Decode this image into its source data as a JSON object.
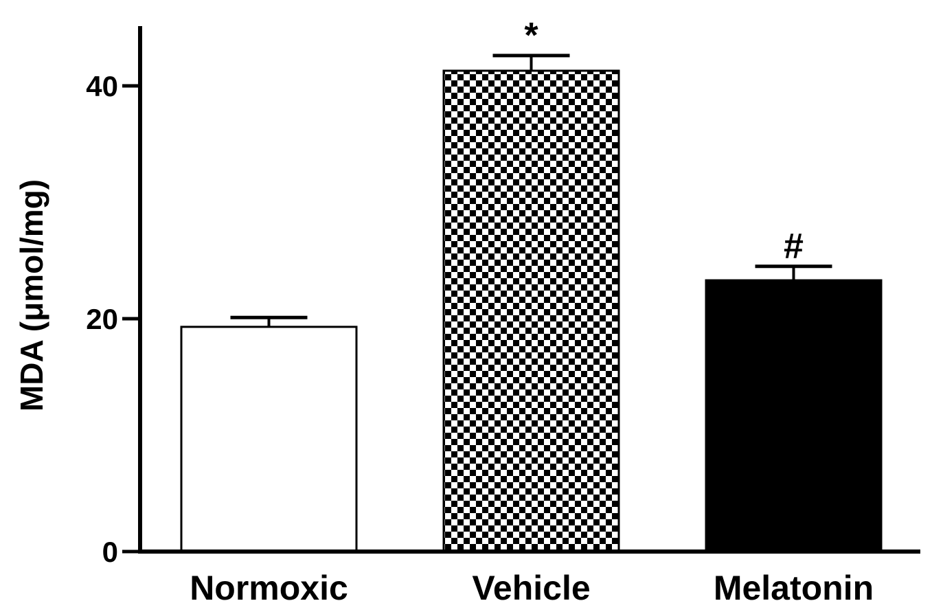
{
  "chart_data": {
    "type": "bar",
    "title": "",
    "xlabel": "",
    "ylabel": "MDA (μmol/mg)",
    "ylim": [
      0,
      45
    ],
    "yticks": [
      {
        "value": 0,
        "label": "0"
      },
      {
        "value": 20,
        "label": "20"
      },
      {
        "value": 40,
        "label": "40"
      }
    ],
    "grid": false,
    "legend": "none",
    "categories": [
      "Normoxic",
      "Vehicle",
      "Melatonin"
    ],
    "values": [
      19.3,
      41.3,
      23.3
    ],
    "errors": [
      0.8,
      1.3,
      1.2
    ],
    "annotations": [
      "",
      "*",
      "#"
    ],
    "fills": [
      "white",
      "checkerboard",
      "black"
    ]
  }
}
